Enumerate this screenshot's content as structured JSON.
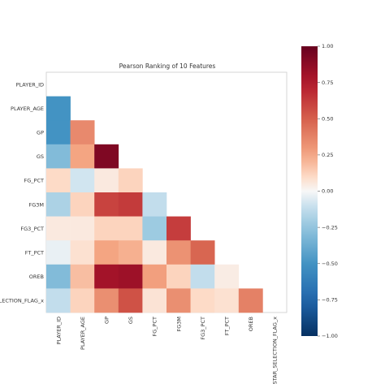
{
  "chart_data": {
    "type": "heatmap",
    "title": "Pearson Ranking of 10 Features",
    "features": [
      "PLAYER_ID",
      "PLAYER_AGE",
      "GP",
      "GS",
      "FG_PCT",
      "FG3M",
      "FG3_PCT",
      "FT_PCT",
      "OREB",
      "STAR_SELECTION_FLAG_x"
    ],
    "row_labels": [
      "PLAYER_ID",
      "PLAYER_AGE",
      "GP",
      "GS",
      "FG_PCT",
      "FG3M",
      "FG3_PCT",
      "FT_PCT",
      "OREB",
      "STAR_SELECTION_FLAG_x"
    ],
    "row_labels_display": [
      "PLAYER_ID",
      "PLAYER_AGE",
      "GP",
      "GS",
      "FG_PCT",
      "FG3M",
      "FG3_PCT",
      "FT_PCT",
      "OREB",
      "SELECTION_FLAG_x"
    ],
    "matrix": [
      [],
      [
        -0.5
      ],
      [
        -0.5,
        0.35
      ],
      [
        -0.3,
        0.25,
        0.92
      ],
      [
        0.1,
        -0.08,
        0.05,
        0.12
      ],
      [
        -0.18,
        0.12,
        0.6,
        0.63,
        -0.12
      ],
      [
        0.05,
        0.05,
        0.12,
        0.12,
        -0.22,
        0.62
      ],
      [
        -0.03,
        0.08,
        0.25,
        0.22,
        0.05,
        0.32,
        0.48
      ],
      [
        -0.3,
        0.18,
        0.8,
        0.82,
        0.27,
        0.12,
        -0.12,
        0.04
      ],
      [
        -0.12,
        0.12,
        0.33,
        0.55,
        0.07,
        0.33,
        0.1,
        0.08,
        0.38
      ]
    ],
    "colorbar": {
      "min": -1.0,
      "max": 1.0,
      "ticks": [
        "1.00",
        "0.75",
        "0.50",
        "0.25",
        "0.00",
        "−0.25",
        "−0.50",
        "−0.75",
        "−1.00"
      ]
    },
    "grid": false
  }
}
